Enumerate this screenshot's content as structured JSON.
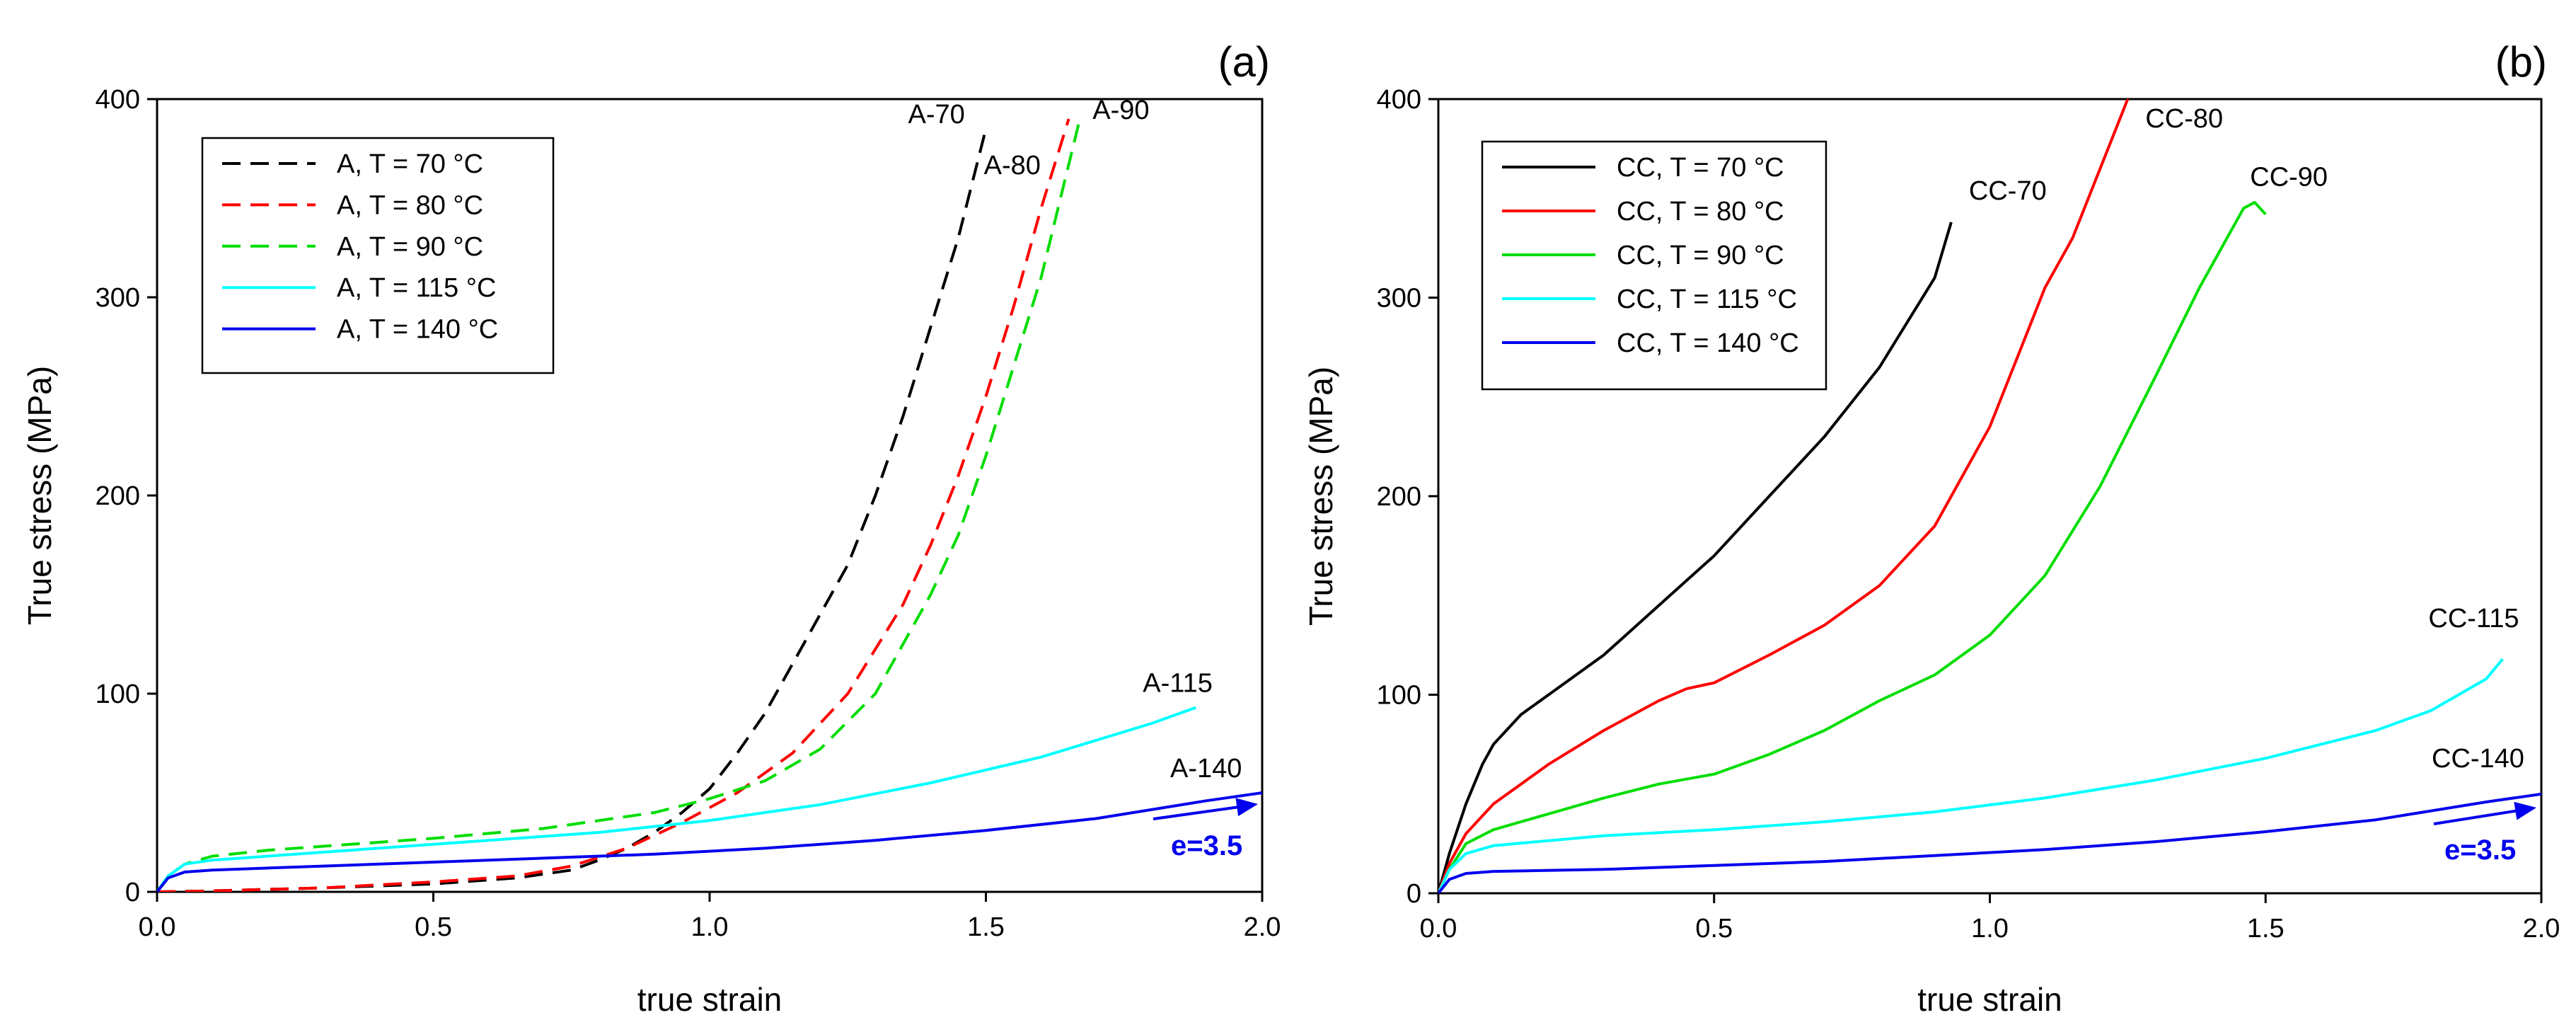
{
  "chart_data": [
    {
      "type": "line",
      "panel_label": "(a)",
      "xlabel": "true strain",
      "ylabel": "True stress (MPa)",
      "xlim": [
        0,
        2.0
      ],
      "ylim": [
        0,
        400
      ],
      "xticks": [
        0.0,
        0.5,
        1.0,
        1.5,
        2.0
      ],
      "xtick_labels": [
        "0.0",
        "0.5",
        "1.0",
        "1.5",
        "2.0"
      ],
      "yticks": [
        0,
        100,
        200,
        300,
        400
      ],
      "ytick_labels": [
        "0",
        "100",
        "200",
        "300",
        "400"
      ],
      "legend_position": "top-left",
      "series": [
        {
          "name": "A, T = 70 °C",
          "end_label": "A-70",
          "color": "#000000",
          "style": "dashed",
          "x": [
            0,
            0.1,
            0.3,
            0.5,
            0.65,
            0.75,
            0.8,
            0.85,
            0.9,
            0.95,
            1.0,
            1.05,
            1.1,
            1.15,
            1.2,
            1.25,
            1.3,
            1.35,
            1.4,
            1.45,
            1.5
          ],
          "y": [
            0,
            0.5,
            2,
            4,
            7,
            11,
            16,
            22,
            30,
            40,
            52,
            70,
            90,
            115,
            140,
            165,
            200,
            240,
            285,
            330,
            385
          ]
        },
        {
          "name": "A, T = 80 °C",
          "end_label": "A-80",
          "color": "#ff0000",
          "style": "dashed",
          "x": [
            0,
            0.1,
            0.3,
            0.5,
            0.65,
            0.75,
            0.85,
            0.95,
            1.05,
            1.15,
            1.25,
            1.35,
            1.4,
            1.45,
            1.5,
            1.55,
            1.6,
            1.65
          ],
          "y": [
            0,
            0.5,
            2,
            5,
            8,
            13,
            22,
            35,
            50,
            70,
            100,
            145,
            175,
            210,
            250,
            295,
            345,
            390
          ]
        },
        {
          "name": "A, T = 90 °C",
          "end_label": "A-90",
          "color": "#00dd00",
          "style": "dashed",
          "x": [
            0,
            0.02,
            0.05,
            0.1,
            0.2,
            0.3,
            0.5,
            0.7,
            0.9,
            1.0,
            1.1,
            1.2,
            1.3,
            1.4,
            1.45,
            1.5,
            1.55,
            1.6,
            1.67
          ],
          "y": [
            0,
            8,
            14,
            18,
            21,
            23,
            27,
            32,
            40,
            47,
            56,
            72,
            100,
            150,
            180,
            220,
            265,
            310,
            390
          ]
        },
        {
          "name": "A, T = 115 °C",
          "end_label": "A-115",
          "color": "#00ffff",
          "style": "solid",
          "x": [
            0,
            0.02,
            0.05,
            0.1,
            0.2,
            0.4,
            0.6,
            0.8,
            1.0,
            1.2,
            1.4,
            1.6,
            1.8,
            1.88
          ],
          "y": [
            0,
            8,
            14,
            16,
            18,
            22,
            26,
            30,
            36,
            44,
            55,
            68,
            85,
            93
          ]
        },
        {
          "name": "A, T = 140 °C",
          "end_label": "A-140",
          "color": "#0000ee",
          "style": "solid",
          "x": [
            0,
            0.02,
            0.05,
            0.1,
            0.3,
            0.5,
            0.7,
            0.9,
            1.1,
            1.3,
            1.5,
            1.7,
            1.9,
            2.0
          ],
          "y": [
            0,
            7,
            10,
            11,
            13,
            15,
            17,
            19,
            22,
            26,
            31,
            37,
            46,
            50
          ]
        }
      ],
      "annotation": {
        "text": "e=3.5",
        "color": "#0000ee"
      }
    },
    {
      "type": "line",
      "panel_label": "(b)",
      "xlabel": "true strain",
      "ylabel": "True stress (MPa)",
      "xlim": [
        0,
        2.0
      ],
      "ylim": [
        0,
        400
      ],
      "xticks": [
        0.0,
        0.5,
        1.0,
        1.5,
        2.0
      ],
      "xtick_labels": [
        "0.0",
        "0.5",
        "1.0",
        "1.5",
        "2.0"
      ],
      "yticks": [
        0,
        100,
        200,
        300,
        400
      ],
      "ytick_labels": [
        "0",
        "100",
        "200",
        "300",
        "400"
      ],
      "legend_position": "top-left",
      "series": [
        {
          "name": "CC, T = 70 °C",
          "end_label": "CC-70",
          "color": "#000000",
          "style": "solid",
          "x": [
            0,
            0.02,
            0.05,
            0.08,
            0.1,
            0.15,
            0.2,
            0.3,
            0.4,
            0.5,
            0.6,
            0.7,
            0.8,
            0.9,
            0.93
          ],
          "y": [
            0,
            20,
            45,
            65,
            75,
            90,
            100,
            120,
            145,
            170,
            200,
            230,
            265,
            310,
            338
          ]
        },
        {
          "name": "CC, T = 80 °C",
          "end_label": "CC-80",
          "color": "#ff0000",
          "style": "solid",
          "x": [
            0,
            0.02,
            0.05,
            0.1,
            0.2,
            0.3,
            0.4,
            0.45,
            0.5,
            0.6,
            0.7,
            0.8,
            0.9,
            1.0,
            1.05,
            1.1,
            1.15,
            1.2,
            1.25
          ],
          "y": [
            0,
            15,
            30,
            45,
            65,
            82,
            97,
            103,
            106,
            120,
            135,
            155,
            185,
            235,
            270,
            305,
            330,
            365,
            400
          ]
        },
        {
          "name": "CC, T = 90 °C",
          "end_label": "CC-90",
          "color": "#00dd00",
          "style": "solid",
          "x": [
            0,
            0.02,
            0.05,
            0.1,
            0.2,
            0.3,
            0.4,
            0.5,
            0.6,
            0.7,
            0.8,
            0.9,
            1.0,
            1.1,
            1.2,
            1.3,
            1.38,
            1.42,
            1.46,
            1.48,
            1.5
          ],
          "y": [
            0,
            12,
            25,
            32,
            40,
            48,
            55,
            60,
            70,
            82,
            97,
            110,
            130,
            160,
            205,
            260,
            305,
            325,
            345,
            348,
            342
          ]
        },
        {
          "name": "CC, T = 115 °C",
          "end_label": "CC-115",
          "color": "#00ffff",
          "style": "solid",
          "x": [
            0,
            0.02,
            0.05,
            0.1,
            0.3,
            0.5,
            0.7,
            0.9,
            1.1,
            1.3,
            1.5,
            1.7,
            1.8,
            1.9,
            1.93
          ],
          "y": [
            0,
            12,
            20,
            24,
            29,
            32,
            36,
            41,
            48,
            57,
            68,
            82,
            92,
            108,
            118
          ]
        },
        {
          "name": "CC, T = 140 °C",
          "end_label": "CC-140",
          "color": "#0000ee",
          "style": "solid",
          "x": [
            0,
            0.02,
            0.05,
            0.1,
            0.3,
            0.5,
            0.7,
            0.9,
            1.1,
            1.3,
            1.5,
            1.7,
            1.9,
            2.0
          ],
          "y": [
            0,
            7,
            10,
            11,
            12,
            14,
            16,
            19,
            22,
            26,
            31,
            37,
            46,
            50
          ]
        }
      ],
      "annotation": {
        "text": "e=3.5",
        "color": "#0000ee"
      }
    }
  ]
}
